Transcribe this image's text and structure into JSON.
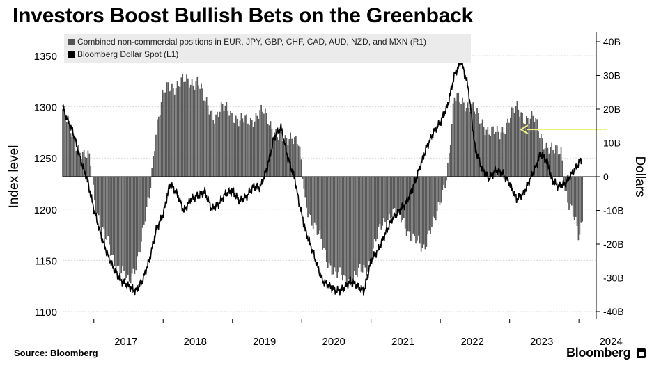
{
  "title": "Investors Boost Bullish Bets on the Greenback",
  "source": "Source: Bloomberg",
  "brand": "Bloomberg",
  "chart_data": {
    "type": "bar+line",
    "legend": [
      {
        "label": "Combined non-commercial positions in EUR, JPY, GBP, CHF, CAD, AUD, NZD, and MXN (R1)",
        "color": "#555555"
      },
      {
        "label": "Bloomberg Dollar Spot (L1)",
        "color": "#000000"
      }
    ],
    "y_left_label": "Index level",
    "y_right_label": "Dollars",
    "y_left_ticks": [
      "1100",
      "1150",
      "1200",
      "1250",
      "1300",
      "1350"
    ],
    "y_left_ticks_num": [
      1100,
      1150,
      1200,
      1250,
      1300,
      1350
    ],
    "y_left_range": [
      1100,
      1360
    ],
    "y_right_ticks": [
      "-40B",
      "-30B",
      "-20B",
      "-10B",
      "0",
      "10B",
      "20B",
      "30B",
      "40B"
    ],
    "y_right_ticks_num": [
      -40,
      -30,
      -20,
      -10,
      0,
      10,
      20,
      30,
      40
    ],
    "y_right_range": [
      -40,
      40
    ],
    "x_ticks": [
      "2017",
      "2018",
      "2019",
      "2020",
      "2021",
      "2022",
      "2023",
      "2024"
    ],
    "x_ticks_num": [
      2017.0,
      2018.0,
      2019.0,
      2020.0,
      2021.0,
      2022.0,
      2023.0,
      2024.0
    ],
    "x_range": [
      2016.55,
      2024.25
    ],
    "annotation": {
      "type": "arrow",
      "color": "#f0f080",
      "y_value_billions": 14,
      "x_from": 2024.0,
      "x_to": 2022.5
    },
    "positions_billions": {
      "x": [
        2016.55,
        2016.65,
        2016.75,
        2016.85,
        2016.95,
        2017.0,
        2017.1,
        2017.2,
        2017.3,
        2017.4,
        2017.5,
        2017.6,
        2017.7,
        2017.8,
        2017.9,
        2018.0,
        2018.05,
        2018.15,
        2018.25,
        2018.4,
        2018.5,
        2018.6,
        2018.75,
        2018.85,
        2018.95,
        2019.1,
        2019.25,
        2019.45,
        2019.55,
        2019.65,
        2019.75,
        2019.85,
        2019.95,
        2020.0,
        2020.05,
        2020.2,
        2020.35,
        2020.5,
        2020.65,
        2020.8,
        2020.95,
        2021.05,
        2021.15,
        2021.3,
        2021.45,
        2021.6,
        2021.75,
        2021.85,
        2021.95,
        2022.0,
        2022.1,
        2022.2,
        2022.35,
        2022.45,
        2022.55,
        2022.7,
        2022.85,
        2023.0,
        2023.1,
        2023.2,
        2023.35,
        2023.45,
        2023.55,
        2023.65,
        2023.75,
        2023.8,
        2023.85,
        2023.95,
        2024.0,
        2024.05
      ],
      "y": [
        20,
        14,
        10,
        6,
        5,
        -5,
        -15,
        -20,
        -25,
        -28,
        -32,
        -26,
        -18,
        -6,
        15,
        24,
        26,
        27,
        28,
        28,
        29,
        22,
        18,
        20,
        20,
        16,
        17,
        19,
        16,
        12,
        10,
        13,
        10,
        2,
        -8,
        -15,
        -24,
        -29,
        -31,
        -29,
        -27,
        -20,
        -15,
        -10,
        -13,
        -18,
        -22,
        -15,
        -12,
        -8,
        2,
        23,
        22,
        21,
        17,
        14,
        12,
        18,
        20,
        18,
        17,
        12,
        9,
        7,
        8,
        -3,
        -8,
        -14,
        -18,
        -12
      ]
    },
    "dollar_index": {
      "x": [
        2016.55,
        2016.6,
        2016.7,
        2016.8,
        2016.9,
        2017.0,
        2017.1,
        2017.2,
        2017.3,
        2017.4,
        2017.5,
        2017.6,
        2017.7,
        2017.8,
        2017.9,
        2018.0,
        2018.05,
        2018.1,
        2018.2,
        2018.3,
        2018.4,
        2018.5,
        2018.6,
        2018.7,
        2018.8,
        2018.9,
        2019.0,
        2019.1,
        2019.2,
        2019.3,
        2019.4,
        2019.5,
        2019.6,
        2019.7,
        2019.8,
        2019.9,
        2019.95,
        2020.05,
        2020.15,
        2020.2,
        2020.25,
        2020.3,
        2020.4,
        2020.5,
        2020.6,
        2020.7,
        2020.8,
        2020.9,
        2021.0,
        2021.1,
        2021.2,
        2021.3,
        2021.4,
        2021.5,
        2021.6,
        2021.7,
        2021.8,
        2021.9,
        2022.0,
        2022.1,
        2022.2,
        2022.3,
        2022.4,
        2022.45,
        2022.5,
        2022.6,
        2022.7,
        2022.8,
        2022.9,
        2023.0,
        2023.1,
        2023.2,
        2023.3,
        2023.4,
        2023.45,
        2023.55,
        2023.6,
        2023.7,
        2023.8,
        2023.9,
        2024.0,
        2024.05
      ],
      "y": [
        1300,
        1290,
        1275,
        1250,
        1230,
        1200,
        1175,
        1155,
        1140,
        1130,
        1125,
        1120,
        1130,
        1150,
        1180,
        1195,
        1210,
        1225,
        1215,
        1198,
        1210,
        1213,
        1217,
        1200,
        1205,
        1215,
        1218,
        1208,
        1212,
        1222,
        1221,
        1240,
        1270,
        1280,
        1250,
        1230,
        1210,
        1180,
        1160,
        1150,
        1140,
        1130,
        1125,
        1120,
        1122,
        1130,
        1125,
        1120,
        1150,
        1160,
        1175,
        1190,
        1198,
        1205,
        1220,
        1240,
        1260,
        1275,
        1285,
        1300,
        1330,
        1345,
        1320,
        1290,
        1260,
        1240,
        1230,
        1238,
        1235,
        1225,
        1210,
        1215,
        1230,
        1245,
        1255,
        1245,
        1230,
        1222,
        1225,
        1235,
        1245,
        1250
      ]
    }
  }
}
